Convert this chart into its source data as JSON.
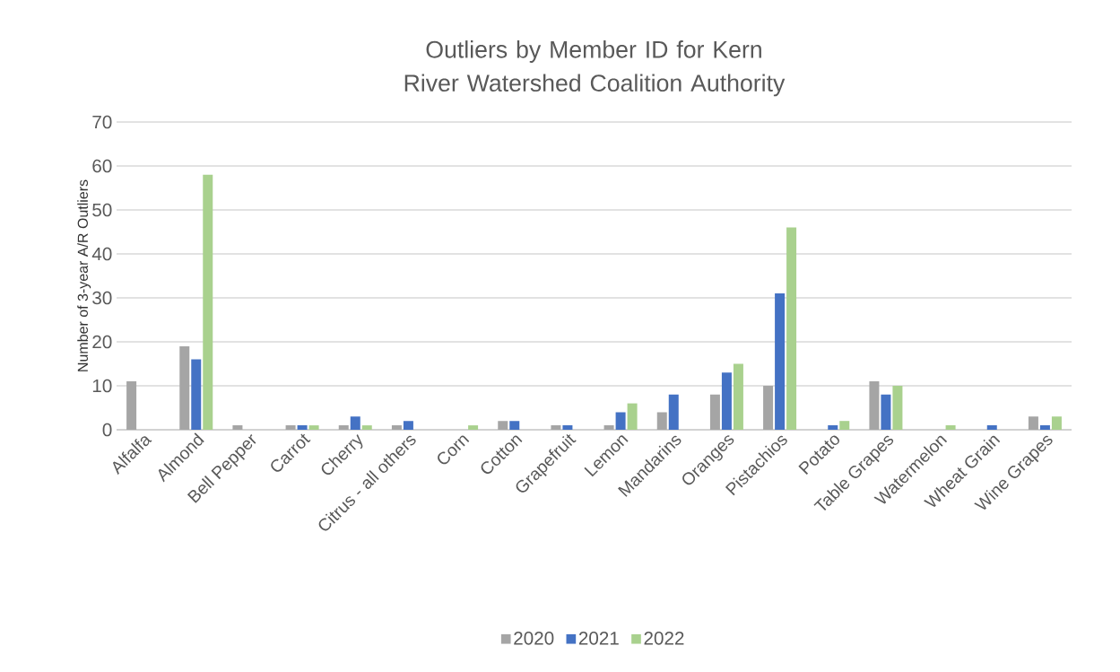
{
  "chart_data": {
    "type": "bar",
    "title": "Outliers by Member ID for Kern River Watershed Coalition Authority",
    "ylabel": "Number of 3-year A/R Outliers",
    "categories": [
      "Alfalfa",
      "Almond",
      "Bell Pepper",
      "Carrot",
      "Cherry",
      "Citrus - all others",
      "Corn",
      "Cotton",
      "Grapefruit",
      "Lemon",
      "Mandarins",
      "Oranges",
      "Pistachios",
      "Potato",
      "Table Grapes",
      "Watermelon",
      "Wheat Grain",
      "Wine Grapes"
    ],
    "series": [
      {
        "name": "2020",
        "color": "#a5a5a5",
        "values": [
          11,
          19,
          1,
          1,
          1,
          1,
          0,
          2,
          1,
          1,
          4,
          8,
          10,
          0,
          11,
          0,
          0,
          3
        ]
      },
      {
        "name": "2021",
        "color": "#4472c4",
        "values": [
          0,
          16,
          0,
          1,
          3,
          2,
          0,
          2,
          1,
          4,
          8,
          13,
          31,
          1,
          8,
          0,
          1,
          1
        ]
      },
      {
        "name": "2022",
        "color": "#a9d18e",
        "values": [
          0,
          58,
          0,
          1,
          1,
          0,
          1,
          0,
          0,
          6,
          0,
          15,
          46,
          2,
          10,
          1,
          0,
          3
        ]
      }
    ],
    "ylim": [
      0,
      70
    ],
    "yticks": [
      0,
      10,
      20,
      30,
      40,
      50,
      60,
      70
    ],
    "grid": "y",
    "legend": "bottom"
  }
}
